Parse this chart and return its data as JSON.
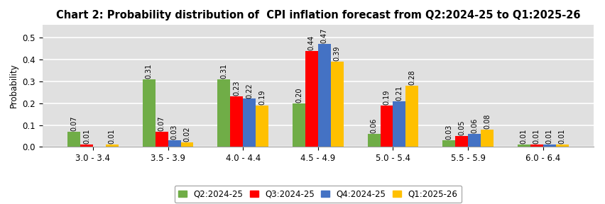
{
  "title": "Chart 2: Probability distribution of  CPI inflation forecast from Q2:2024-25 to Q1:2025-26",
  "categories": [
    "3.0 - 3.4",
    "3.5 - 3.9",
    "4.0 - 4.4",
    "4.5 - 4.9",
    "5.0 - 5.4",
    "5.5 - 5.9",
    "6.0 - 6.4"
  ],
  "series": {
    "Q2:2024-25": [
      0.07,
      0.31,
      0.31,
      0.2,
      0.06,
      0.03,
      0.01
    ],
    "Q3:2024-25": [
      0.01,
      0.07,
      0.23,
      0.44,
      0.19,
      0.05,
      0.01
    ],
    "Q4:2024-25": [
      0.0,
      0.03,
      0.22,
      0.47,
      0.21,
      0.06,
      0.01
    ],
    "Q1:2025-26": [
      0.01,
      0.02,
      0.19,
      0.39,
      0.28,
      0.08,
      0.01
    ]
  },
  "colors": {
    "Q2:2024-25": "#70AD47",
    "Q3:2024-25": "#FF0000",
    "Q4:2024-25": "#4472C4",
    "Q1:2025-26": "#FFC000"
  },
  "ylabel": "Probability",
  "ylim": [
    0,
    0.56
  ],
  "yticks": [
    0.0,
    0.1,
    0.2,
    0.3,
    0.4,
    0.5
  ],
  "legend_labels": [
    "Q2:2024-25",
    "Q3:2024-25",
    "Q4:2024-25",
    "Q1:2025-26"
  ],
  "title_fontsize": 10.5,
  "label_fontsize": 7,
  "axis_fontsize": 8.5,
  "background_color": "#FFFFFF",
  "grid_color": "#BBBBBB"
}
